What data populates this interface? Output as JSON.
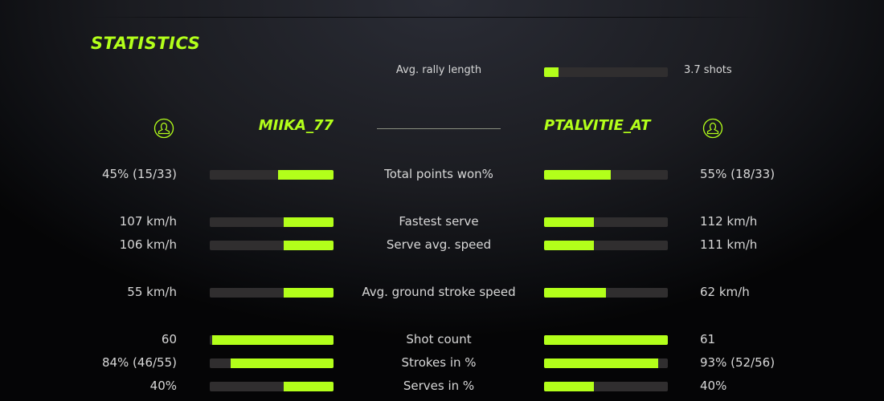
{
  "title": "STATISTICS",
  "accent": "#b3ff1a",
  "rally": {
    "label": "Avg. rally length",
    "value": "3.7 shots",
    "fill_pct": 12
  },
  "players": {
    "left": {
      "name": "MIIKA_77",
      "icon": "user-circle-icon"
    },
    "right": {
      "name": "PTALVITIE_AT",
      "icon": "user-circle-icon"
    }
  },
  "stats": [
    {
      "label": "Total points won%",
      "left": "45% (15/33)",
      "right": "55% (18/33)",
      "left_pct": 45,
      "right_pct": 54
    },
    {
      "label": "Fastest serve",
      "left": "107 km/h",
      "right": "112 km/h",
      "left_pct": 40,
      "right_pct": 40
    },
    {
      "label": "Serve avg. speed",
      "left": "106 km/h",
      "right": "111 km/h",
      "left_pct": 40,
      "right_pct": 40
    },
    {
      "label": "Avg. ground stroke speed",
      "left": "55 km/h",
      "right": "62 km/h",
      "left_pct": 40,
      "right_pct": 50
    },
    {
      "label": "Shot count",
      "left": "60",
      "right": "61",
      "left_pct": 98,
      "right_pct": 100
    },
    {
      "label": "Strokes in %",
      "left": "84% (46/55)",
      "right": "93% (52/56)",
      "left_pct": 83,
      "right_pct": 92
    },
    {
      "label": "Serves in %",
      "left": "40%",
      "right": "40%",
      "left_pct": 40,
      "right_pct": 40
    }
  ]
}
